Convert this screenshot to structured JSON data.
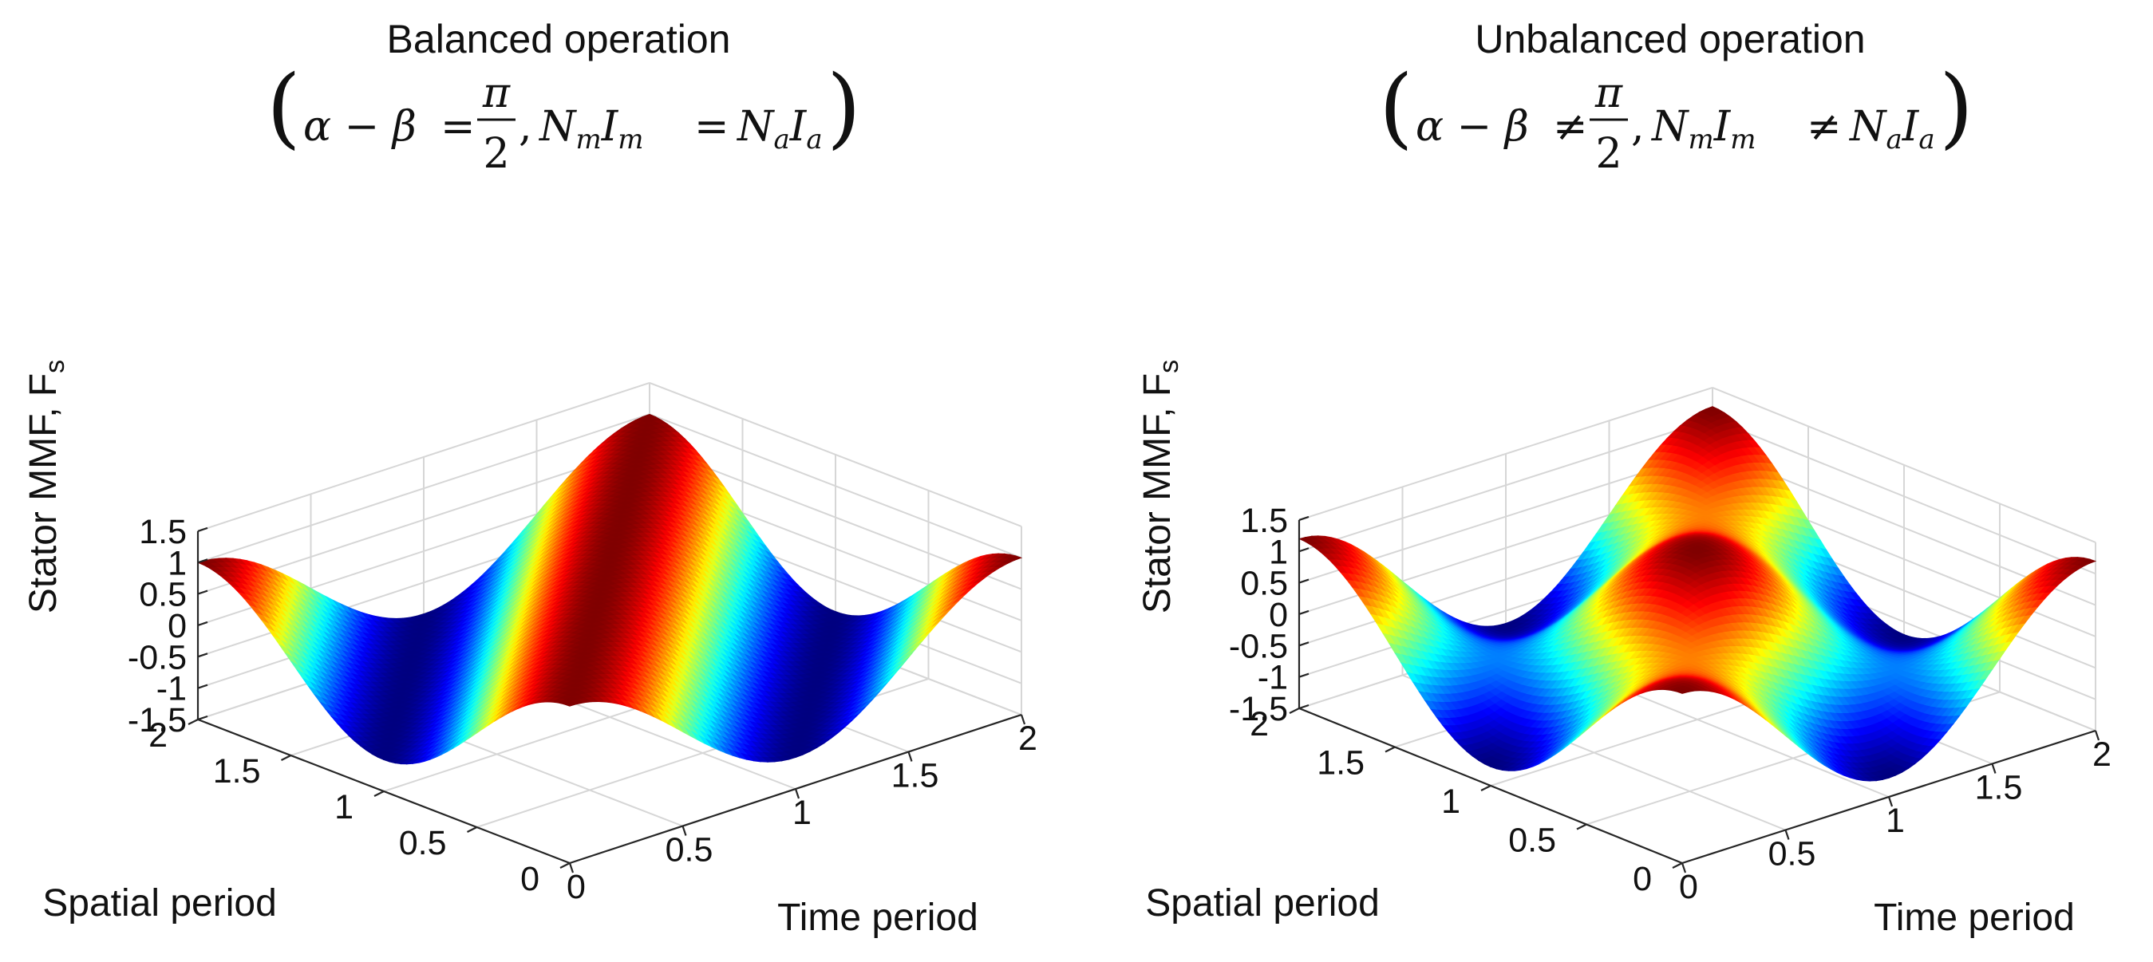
{
  "colormap": "jet",
  "chart_data": [
    {
      "type": "surface",
      "title": "Balanced operation",
      "subtitle": "(α − β = π/2, NmIm = NaIa)",
      "condition": {
        "lhs": "α − β",
        "relation": "=",
        "pi_num": "π",
        "pi_den": "2",
        "mmf_left": "N",
        "mmf_left_sub": "m",
        "mmf_left2": "I",
        "mmf_left2_sub": "m",
        "mmf_relation": "=",
        "mmf_right": "N",
        "mmf_right_sub": "a",
        "mmf_right2": "I",
        "mmf_right2_sub": "a"
      },
      "xlabel": "Time period",
      "ylabel": "Spatial period",
      "zlabel": "Stator MMF, F",
      "zlabel_sub": "s",
      "xlim": [
        0,
        2
      ],
      "ylim": [
        0,
        2
      ],
      "zlim": [
        -1.5,
        1.5
      ],
      "x_ticks": [
        "0",
        "0.5",
        "1",
        "1.5",
        "2"
      ],
      "y_ticks": [
        "0",
        "0.5",
        "1",
        "1.5",
        "2"
      ],
      "z_ticks": [
        "-1.5",
        "-1",
        "-0.5",
        "0",
        "0.5",
        "1",
        "1.5"
      ],
      "function": "F_s = cos(πx − πy)",
      "amplitude_A": 1.0,
      "amplitude_B": 0.0,
      "grid": true
    },
    {
      "type": "surface",
      "title": "Unbalanced operation",
      "subtitle": "(α − β ≠ π/2, NmIm ≠ NaIa)",
      "condition": {
        "lhs": "α − β",
        "relation": "≠",
        "pi_num": "π",
        "pi_den": "2",
        "mmf_left": "N",
        "mmf_left_sub": "m",
        "mmf_left2": "I",
        "mmf_left2_sub": "m",
        "mmf_relation": "≠",
        "mmf_right": "N",
        "mmf_right_sub": "a",
        "mmf_right2": "I",
        "mmf_right2_sub": "a"
      },
      "xlabel": "Time period",
      "ylabel": "Spatial period",
      "zlabel": "Stator MMF, F",
      "zlabel_sub": "s",
      "xlim": [
        0,
        2
      ],
      "ylim": [
        0,
        2
      ],
      "zlim": [
        -1.5,
        1.5
      ],
      "x_ticks": [
        "0",
        "0.5",
        "1",
        "1.5",
        "2"
      ],
      "y_ticks": [
        "0",
        "0.5",
        "1",
        "1.5",
        "2"
      ],
      "z_ticks": [
        "-1.5",
        "-1",
        "-0.5",
        "0",
        "0.5",
        "1",
        "1.5"
      ],
      "function": "F_s = A·cos(πx − πy) + B·cos(πx + πy)",
      "amplitude_A": 0.9,
      "amplitude_B": 0.3,
      "grid": true
    }
  ]
}
